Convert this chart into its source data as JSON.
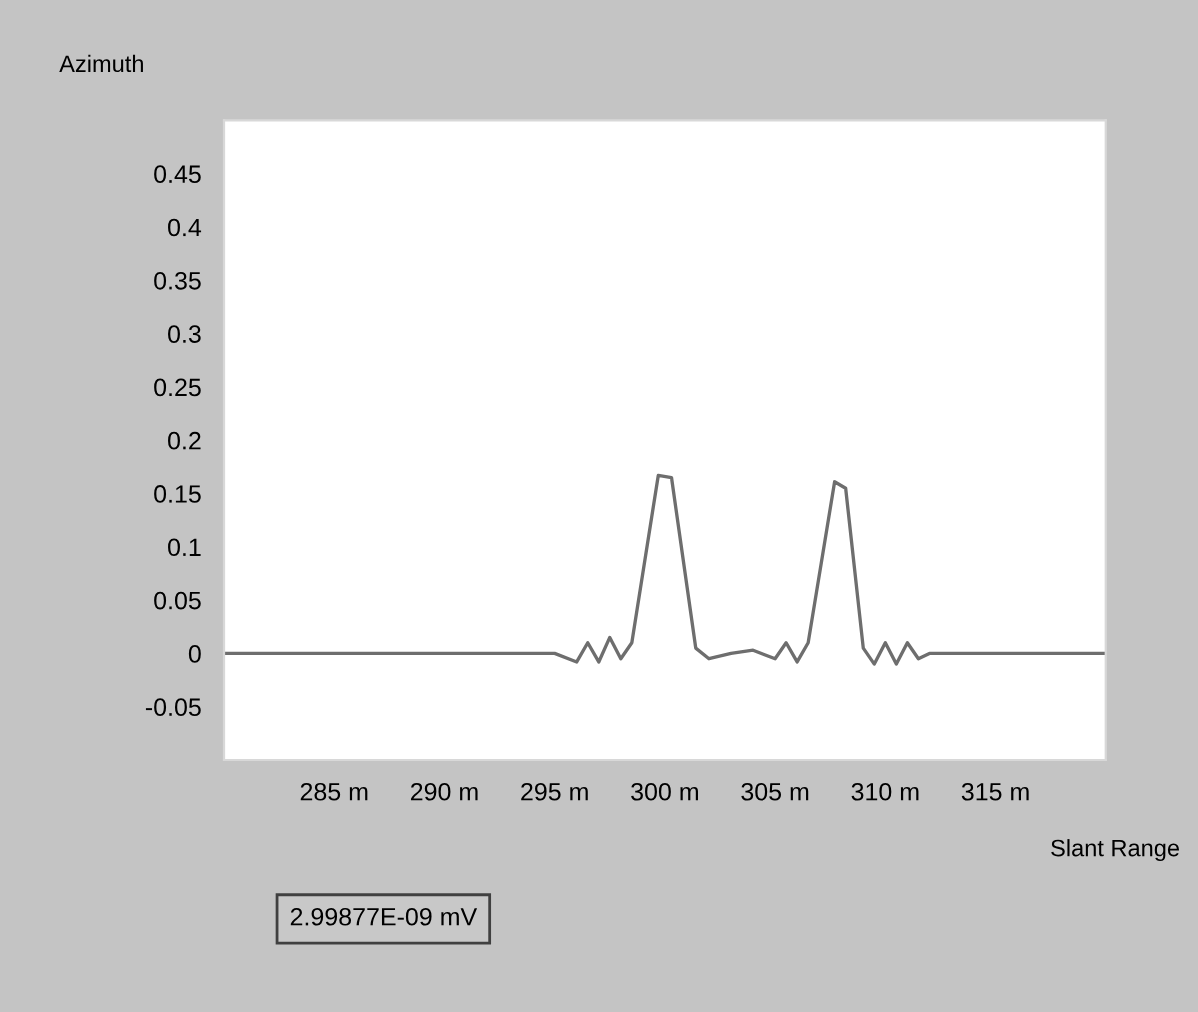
{
  "chart_data": {
    "type": "line",
    "xlabel": "Slant Range",
    "ylabel": "Azimuth",
    "annotations": [
      "2.99877E-09 mV"
    ],
    "x": [
      280,
      290,
      295,
      296,
      296.5,
      297,
      297.5,
      298,
      298.5,
      299.7,
      300.3,
      301.4,
      302,
      303,
      304,
      305,
      305.5,
      306,
      306.5,
      307.7,
      308.2,
      309,
      309.5,
      310,
      310.5,
      311,
      311.5,
      312,
      320
    ],
    "series": [
      {
        "color": "#6e6e6e",
        "values": [
          0,
          0,
          0,
          -0.008,
          0.01,
          -0.008,
          0.015,
          -0.005,
          0.01,
          0.167,
          0.165,
          0.005,
          -0.005,
          0,
          0.003,
          -0.005,
          0.01,
          -0.008,
          0.01,
          0.161,
          0.155,
          0.005,
          -0.01,
          0.01,
          -0.01,
          0.01,
          -0.005,
          0,
          0
        ]
      }
    ],
    "xlim": [
      280,
      320
    ],
    "ylim": [
      -0.1,
      0.5
    ],
    "xticks": [
      {
        "value": 285,
        "label": "285 m"
      },
      {
        "value": 290,
        "label": "290 m"
      },
      {
        "value": 295,
        "label": "295 m"
      },
      {
        "value": 300,
        "label": "300 m"
      },
      {
        "value": 305,
        "label": "305 m"
      },
      {
        "value": 310,
        "label": "310 m"
      },
      {
        "value": 315,
        "label": "315 m"
      }
    ],
    "yticks": [
      -0.05,
      0,
      0.05,
      0.1,
      0.15,
      0.2,
      0.25,
      0.3,
      0.35,
      0.4,
      0.45
    ],
    "grid": false,
    "legend": false,
    "marker": "none",
    "line_style": "solid"
  }
}
